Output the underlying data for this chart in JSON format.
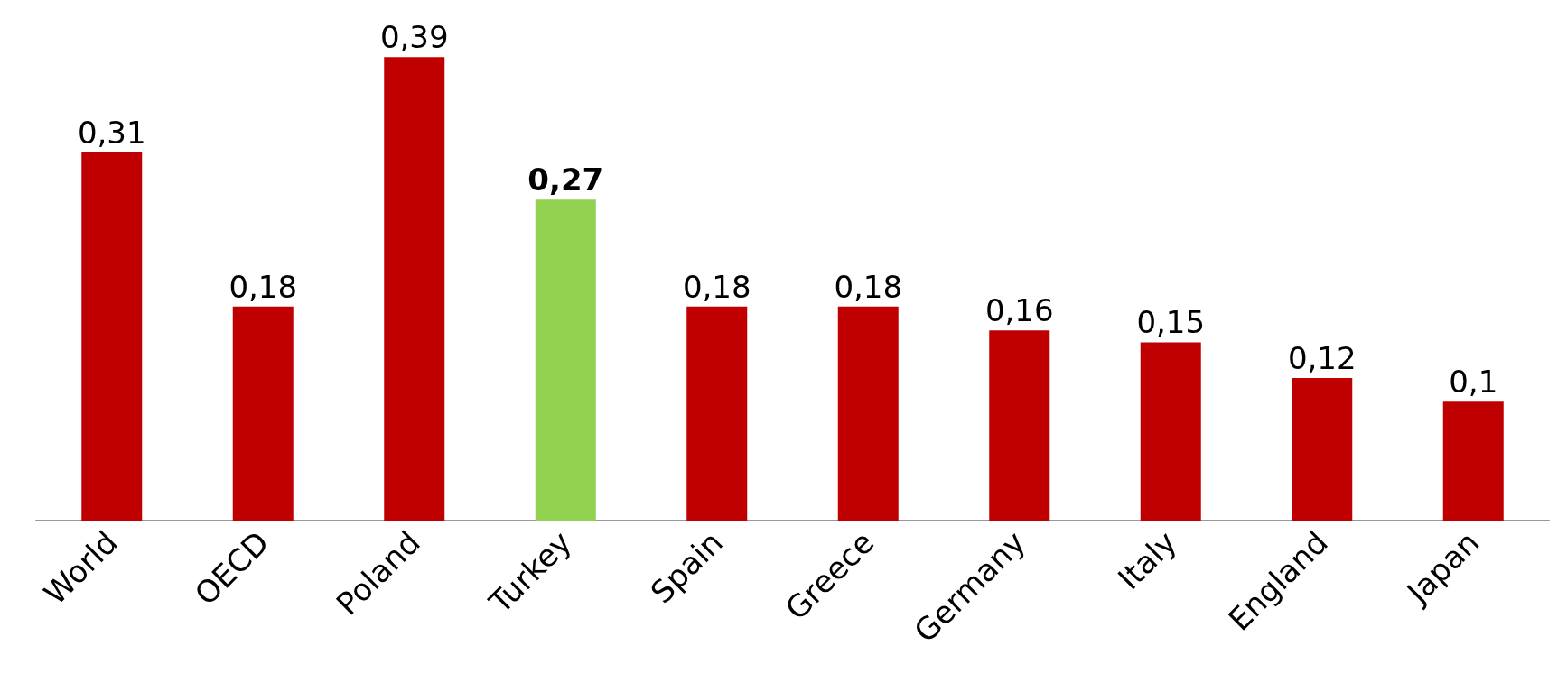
{
  "chart_data": {
    "type": "bar",
    "categories": [
      "World",
      "OECD",
      "Poland",
      "Turkey",
      "Spain",
      "Greece",
      "Germany",
      "Italy",
      "England",
      "Japan"
    ],
    "values": [
      0.31,
      0.18,
      0.39,
      0.27,
      0.18,
      0.18,
      0.16,
      0.15,
      0.12,
      0.1
    ],
    "value_labels": [
      "0,31",
      "0,18",
      "0,39",
      "0,27",
      "0,18",
      "0,18",
      "0,16",
      "0,15",
      "0,12",
      "0,1"
    ],
    "colors": [
      "#c00000",
      "#c00000",
      "#c00000",
      "#92d050",
      "#c00000",
      "#c00000",
      "#c00000",
      "#c00000",
      "#c00000",
      "#c00000"
    ],
    "grid": false
  }
}
